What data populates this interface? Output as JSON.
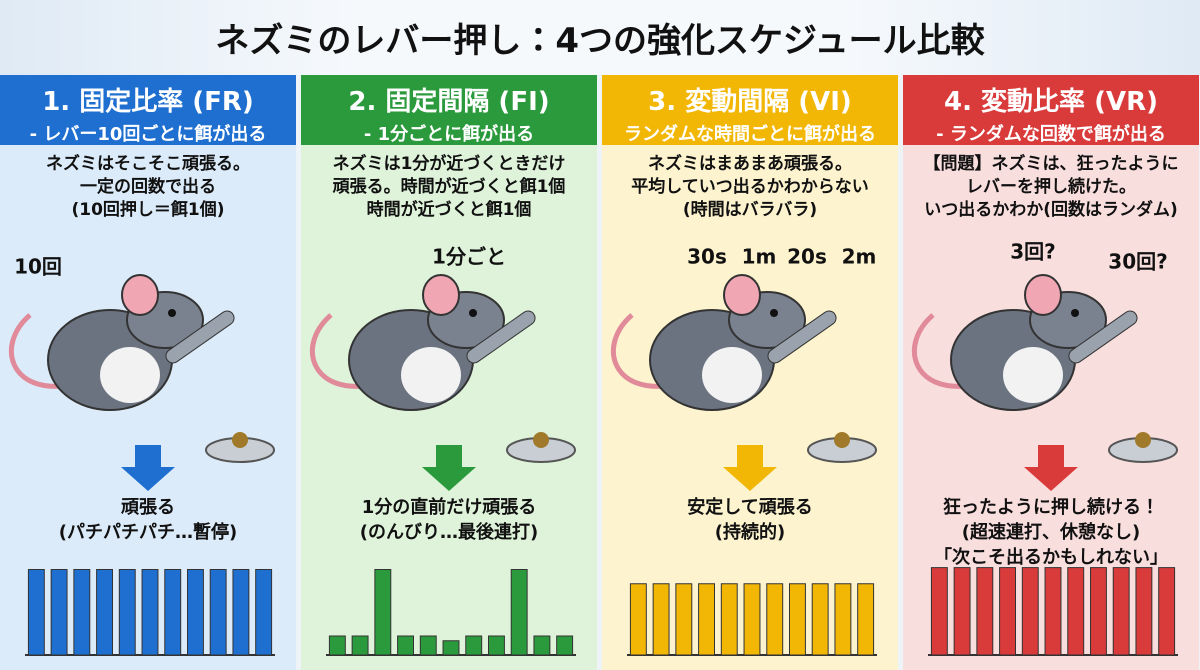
{
  "header": {
    "title": "ネズミのレバー押し：4つの強化スケジュール比較"
  },
  "panels": [
    {
      "title": "1. 固定比率 (FR)",
      "subtitle": "- レバー10回ごとに餌が出る",
      "color": "#1f6fd1",
      "background": "#dcebf9",
      "description": [
        "ネズミはそこそこ頑張る。",
        "一定の回数で出る",
        "(10回押し＝餌1個)"
      ],
      "labels": [
        "10回"
      ],
      "result": [
        "頑張る",
        "(パチパチパチ…暫停)"
      ],
      "bars": [
        90,
        90,
        90,
        90,
        90,
        90,
        90,
        90,
        90,
        90,
        90
      ]
    },
    {
      "title": "2. 固定間隔 (FI)",
      "subtitle": "- 1分ごとに餌が出る",
      "color": "#2a9a3c",
      "background": "#def3da",
      "description": [
        "ネズミは1分が近づくときだけ",
        "頑張る。時間が近づくと餌1個",
        "時間が近づくと餌1個"
      ],
      "labels": [
        "1分ごと"
      ],
      "result": [
        "1分の直前だけ頑張る",
        "(のんびり…最後連打)"
      ],
      "bars": [
        20,
        20,
        90,
        20,
        20,
        15,
        20,
        20,
        90,
        20,
        20
      ]
    },
    {
      "title": "3. 変動間隔 (VI)",
      "subtitle": "ランダムな時間ごとに餌が出る",
      "color": "#f2b705",
      "background": "#fdf3cf",
      "description": [
        "ネズミはまあまあ頑張る。",
        "平均していつ出るかわからない",
        "(時間はバラバラ)"
      ],
      "labels": [
        "30s",
        "1m",
        "20s",
        "2m"
      ],
      "result": [
        "安定して頑張る",
        "(持続的)"
      ],
      "bars": [
        75,
        75,
        75,
        75,
        75,
        75,
        75,
        75,
        75,
        75,
        75
      ]
    },
    {
      "title": "4. 変動比率 (VR)",
      "subtitle": "- ランダムな回数で餌が出る",
      "color": "#d93a3a",
      "background": "#f9dede",
      "description": [
        "【問題】ネズミは、狂ったように",
        "レバーを押し続けた。",
        "いつ出るかわか(回数はランダム)"
      ],
      "labels": [
        "3回?",
        "30回?"
      ],
      "result": [
        "狂ったように押し続ける！",
        "(超速連打、休憩なし)",
        "「次こそ出るかもしれない」"
      ],
      "bars": [
        92,
        92,
        92,
        92,
        92,
        92,
        92,
        92,
        92,
        92,
        92
      ]
    }
  ]
}
